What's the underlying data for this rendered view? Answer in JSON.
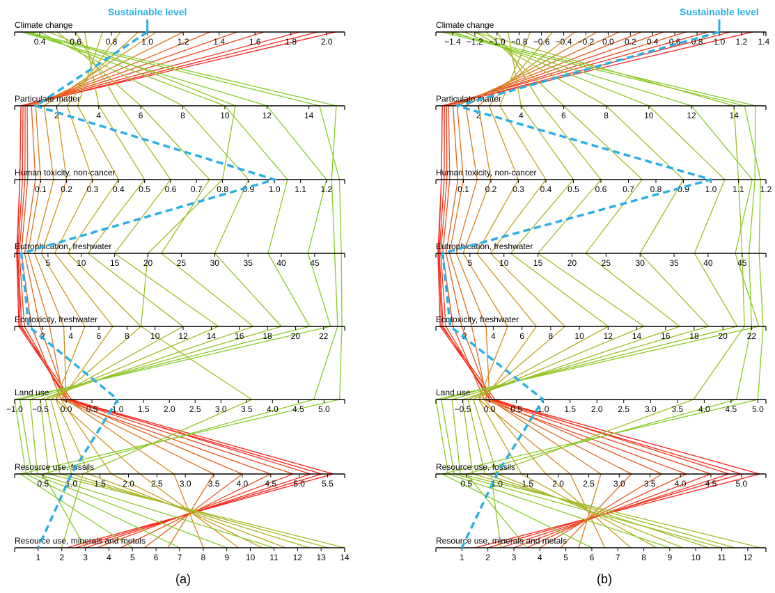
{
  "chart_data": [
    {
      "type": "parallel-coordinates",
      "panel_label": "(a)",
      "reference_line": {
        "label": "Sustainable level",
        "color": "#2ab0e4",
        "value": 1.0
      },
      "color_scale": [
        "#7fd12a",
        "#c8a020",
        "#e8501e",
        "#ff1a1a"
      ],
      "axes": [
        {
          "name": "Climate change",
          "range": [
            0.26,
            2.1
          ],
          "ticks": [
            0.4,
            0.6,
            0.8,
            1.0,
            1.2,
            1.4,
            1.6,
            1.8,
            2.0
          ],
          "tick_labels": [
            "0.4",
            "0.6",
            "0.8",
            "1.0",
            "1.2",
            "1.4",
            "1.6",
            "1.8",
            "2.0"
          ]
        },
        {
          "name": "Particulate matter",
          "range": [
            0.0,
            15.7
          ],
          "ticks": [
            2,
            4,
            6,
            8,
            10,
            12,
            14
          ],
          "tick_labels": [
            "2",
            "4",
            "6",
            "8",
            "10",
            "12",
            "14"
          ]
        },
        {
          "name": "Human toxicity, non-cancer",
          "range": [
            0.0,
            1.27
          ],
          "ticks": [
            0.1,
            0.2,
            0.3,
            0.4,
            0.5,
            0.6,
            0.7,
            0.8,
            0.9,
            1.0,
            1.1,
            1.2
          ],
          "tick_labels": [
            "0.1",
            "0.2",
            "0.3",
            "0.4",
            "0.5",
            "0.6",
            "0.7",
            "0.8",
            "0.9",
            "1.0",
            "1.1",
            "1.2"
          ]
        },
        {
          "name": "Eutrophication, freshwater",
          "range": [
            0.0,
            49.5
          ],
          "ticks": [
            5,
            10,
            15,
            20,
            25,
            30,
            35,
            40,
            45
          ],
          "tick_labels": [
            "5",
            "10",
            "15",
            "20",
            "25",
            "30",
            "35",
            "40",
            "45"
          ]
        },
        {
          "name": "Ecotoxicity, freshwater",
          "range": [
            0.0,
            23.5
          ],
          "ticks": [
            2,
            4,
            6,
            8,
            10,
            12,
            14,
            16,
            18,
            20,
            22
          ],
          "tick_labels": [
            "2",
            "4",
            "6",
            "8",
            "10",
            "12",
            "14",
            "16",
            "18",
            "20",
            "22"
          ]
        },
        {
          "name": "Land use",
          "range": [
            -1.0,
            5.4
          ],
          "ticks": [
            -1.0,
            -0.5,
            0.0,
            0.5,
            1.0,
            1.5,
            2.0,
            2.5,
            3.0,
            3.5,
            4.0,
            4.5,
            5.0
          ],
          "tick_labels": [
            "−1.0",
            "−0.5",
            "0.0",
            "0.5",
            "1.0",
            "1.5",
            "2.0",
            "2.5",
            "3.0",
            "3.5",
            "4.0",
            "4.5",
            "5.0"
          ]
        },
        {
          "name": "Resource use, fossils",
          "range": [
            0.0,
            5.8
          ],
          "ticks": [
            0.5,
            1.0,
            1.5,
            2.0,
            2.5,
            3.0,
            3.5,
            4.0,
            4.5,
            5.0,
            5.5
          ],
          "tick_labels": [
            "0.5",
            "1.0",
            "1.5",
            "2.0",
            "2.5",
            "3.0",
            "3.5",
            "4.0",
            "4.5",
            "5.0",
            "5.5"
          ]
        },
        {
          "name": "Resource use, minerals and metals",
          "range": [
            0.0,
            14.0
          ],
          "ticks": [
            1,
            2,
            3,
            4,
            5,
            6,
            7,
            8,
            9,
            10,
            11,
            12,
            13,
            14
          ],
          "tick_labels": [
            "1",
            "2",
            "3",
            "4",
            "5",
            "6",
            "7",
            "8",
            "9",
            "10",
            "11",
            "12",
            "13",
            "14"
          ]
        }
      ],
      "reference_values": [
        1.0,
        1.0,
        1.0,
        1.0,
        1.0,
        1.0,
        1.0,
        1.0
      ],
      "profiles": [
        [
          2.05,
          0.3,
          0.02,
          0.3,
          0.3,
          0.05,
          5.6,
          2.2
        ],
        [
          1.95,
          0.4,
          0.03,
          0.5,
          0.5,
          0.0,
          5.4,
          2.6
        ],
        [
          1.85,
          0.3,
          0.02,
          0.4,
          0.4,
          0.1,
          5.2,
          3.0
        ],
        [
          1.65,
          0.5,
          0.04,
          0.7,
          0.7,
          0.0,
          4.9,
          3.5
        ],
        [
          1.5,
          0.6,
          0.05,
          1.0,
          1.2,
          -0.1,
          4.5,
          4.5
        ],
        [
          1.35,
          0.8,
          0.08,
          1.5,
          1.8,
          0.0,
          4.0,
          5.5
        ],
        [
          1.2,
          1.0,
          0.1,
          2.0,
          2.5,
          -0.05,
          3.5,
          6.5
        ],
        [
          1.05,
          1.4,
          0.15,
          3.0,
          3.5,
          0.0,
          2.8,
          8.0
        ],
        [
          0.95,
          2.0,
          0.2,
          4.0,
          5.0,
          -0.2,
          2.2,
          9.5
        ],
        [
          0.85,
          2.5,
          0.3,
          6.0,
          7.0,
          -0.1,
          1.7,
          10.5
        ],
        [
          0.75,
          3.0,
          0.4,
          8.0,
          9.0,
          -0.2,
          1.3,
          11.5
        ],
        [
          0.65,
          4.0,
          0.5,
          11.0,
          12.0,
          -0.3,
          1.0,
          12.5
        ],
        [
          0.6,
          5.0,
          0.6,
          15.0,
          14.5,
          -0.4,
          0.8,
          13.3
        ],
        [
          0.5,
          6.0,
          0.75,
          22.0,
          17.0,
          -0.5,
          0.6,
          14.0
        ],
        [
          0.4,
          8.0,
          0.9,
          30.0,
          19.0,
          -0.7,
          0.4,
          11.0
        ],
        [
          0.35,
          10.0,
          1.05,
          38.0,
          21.0,
          -0.9,
          0.3,
          9.0
        ],
        [
          0.3,
          12.0,
          1.2,
          44.0,
          22.5,
          -1.0,
          0.2,
          7.0
        ],
        [
          0.3,
          14.5,
          1.25,
          49.0,
          23.3,
          5.3,
          0.1,
          5.0
        ],
        [
          0.32,
          15.3,
          1.22,
          48.0,
          23.0,
          4.8,
          0.5,
          3.0
        ],
        [
          0.45,
          10.5,
          0.8,
          20.0,
          9.0,
          3.6,
          1.2,
          2.0
        ]
      ]
    },
    {
      "type": "parallel-coordinates",
      "panel_label": "(b)",
      "reference_line": {
        "label": "Sustainable level",
        "color": "#2ab0e4",
        "value": 1.0
      },
      "color_scale": [
        "#7fd12a",
        "#c8a020",
        "#e8501e",
        "#ff1a1a"
      ],
      "axes": [
        {
          "name": "Climate change",
          "range": [
            -1.55,
            1.42
          ],
          "ticks": [
            -1.4,
            -1.2,
            -1.0,
            -0.8,
            -0.6,
            -0.4,
            -0.2,
            0.0,
            0.2,
            0.4,
            0.6,
            0.8,
            1.0,
            1.2,
            1.4
          ],
          "tick_labels": [
            "−1.4",
            "−1.2",
            "−1.0",
            "−0.8",
            "−0.6",
            "−0.4",
            "−0.2",
            "0.0",
            "0.2",
            "0.4",
            "0.6",
            "0.8",
            "1.0",
            "1.2",
            "1.4"
          ]
        },
        {
          "name": "Particulate matter",
          "range": [
            0.0,
            15.5
          ],
          "ticks": [
            2,
            4,
            6,
            8,
            10,
            12,
            14
          ],
          "tick_labels": [
            "2",
            "4",
            "6",
            "8",
            "10",
            "12",
            "14"
          ]
        },
        {
          "name": "Human toxicity, non-cancer",
          "range": [
            0.0,
            1.2
          ],
          "ticks": [
            0.1,
            0.2,
            0.3,
            0.4,
            0.5,
            0.6,
            0.7,
            0.8,
            0.9,
            1.0,
            1.1,
            1.2
          ],
          "tick_labels": [
            "0.1",
            "0.2",
            "0.3",
            "0.4",
            "0.5",
            "0.6",
            "0.7",
            "0.8",
            "0.9",
            "1.0",
            "1.1",
            "1.2"
          ]
        },
        {
          "name": "Eutrophication, freshwater",
          "range": [
            0.0,
            48.5
          ],
          "ticks": [
            5,
            10,
            15,
            20,
            25,
            30,
            35,
            40,
            45
          ],
          "tick_labels": [
            "5",
            "10",
            "15",
            "20",
            "25",
            "30",
            "35",
            "40",
            "45"
          ]
        },
        {
          "name": "Ecotoxicity, freshwater",
          "range": [
            0.0,
            23.0
          ],
          "ticks": [
            2,
            4,
            6,
            8,
            10,
            12,
            14,
            16,
            18,
            20,
            22
          ],
          "tick_labels": [
            "2",
            "4",
            "6",
            "8",
            "10",
            "12",
            "14",
            "16",
            "18",
            "20",
            "22"
          ]
        },
        {
          "name": "Land use",
          "range": [
            -1.0,
            5.15
          ],
          "ticks": [
            -0.5,
            0.0,
            0.5,
            1.0,
            1.5,
            2.0,
            2.5,
            3.0,
            3.5,
            4.0,
            4.5,
            5.0
          ],
          "tick_labels": [
            "−0.5",
            "0.0",
            "0.5",
            "1.0",
            "1.5",
            "2.0",
            "2.5",
            "3.0",
            "3.5",
            "4.0",
            "4.5",
            "5.0"
          ]
        },
        {
          "name": "Resource use, fossils",
          "range": [
            0.0,
            5.4
          ],
          "ticks": [
            0.5,
            1.0,
            1.5,
            2.0,
            2.5,
            3.0,
            3.5,
            4.0,
            4.5,
            5.0
          ],
          "tick_labels": [
            "0.5",
            "1.0",
            "1.5",
            "2.0",
            "2.5",
            "3.0",
            "3.5",
            "4.0",
            "4.5",
            "5.0"
          ]
        },
        {
          "name": "Resource use, minerals and metals",
          "range": [
            0.0,
            12.7
          ],
          "ticks": [
            1,
            2,
            3,
            4,
            5,
            6,
            7,
            8,
            9,
            10,
            11,
            12
          ],
          "tick_labels": [
            "1",
            "2",
            "3",
            "4",
            "5",
            "6",
            "7",
            "8",
            "9",
            "10",
            "11",
            "12"
          ]
        }
      ],
      "reference_values": [
        1.0,
        1.0,
        1.0,
        1.0,
        1.0,
        1.0,
        1.0,
        1.0
      ],
      "profiles": [
        [
          1.3,
          0.3,
          0.02,
          0.3,
          0.3,
          0.05,
          5.3,
          1.5
        ],
        [
          1.1,
          0.4,
          0.03,
          0.5,
          0.5,
          0.0,
          5.0,
          2.0
        ],
        [
          0.9,
          0.3,
          0.02,
          0.4,
          0.4,
          0.1,
          4.8,
          2.5
        ],
        [
          0.7,
          0.5,
          0.04,
          0.7,
          0.7,
          0.0,
          4.5,
          3.0
        ],
        [
          0.5,
          0.6,
          0.05,
          1.0,
          1.2,
          -0.1,
          4.1,
          3.5
        ],
        [
          0.3,
          0.8,
          0.08,
          1.5,
          1.8,
          0.0,
          3.7,
          4.0
        ],
        [
          0.1,
          1.0,
          0.1,
          2.0,
          2.5,
          -0.05,
          3.2,
          4.8
        ],
        [
          -0.1,
          1.4,
          0.15,
          3.0,
          3.5,
          0.0,
          2.7,
          5.5
        ],
        [
          -0.3,
          2.0,
          0.2,
          4.0,
          5.0,
          -0.2,
          2.2,
          6.5
        ],
        [
          -0.5,
          2.5,
          0.3,
          6.0,
          7.0,
          -0.1,
          1.8,
          7.5
        ],
        [
          -0.7,
          3.0,
          0.4,
          8.0,
          9.0,
          -0.2,
          1.4,
          8.5
        ],
        [
          -0.9,
          4.0,
          0.5,
          11.0,
          12.0,
          -0.3,
          1.0,
          9.5
        ],
        [
          -1.0,
          5.0,
          0.6,
          15.0,
          14.5,
          -0.4,
          0.8,
          10.5
        ],
        [
          -1.1,
          6.0,
          0.75,
          22.0,
          17.0,
          -0.5,
          0.6,
          11.5
        ],
        [
          -1.2,
          8.0,
          0.9,
          30.0,
          19.0,
          -0.7,
          0.4,
          12.5
        ],
        [
          -1.3,
          10.0,
          1.05,
          38.0,
          21.0,
          -0.9,
          0.3,
          11.0
        ],
        [
          -1.4,
          12.0,
          1.15,
          44.0,
          22.5,
          -1.0,
          0.2,
          9.0
        ],
        [
          -1.5,
          14.5,
          1.18,
          47.5,
          22.8,
          5.0,
          0.1,
          6.0
        ],
        [
          -1.45,
          15.0,
          1.16,
          46.0,
          22.0,
          4.6,
          0.5,
          3.5
        ],
        [
          -1.2,
          14.0,
          1.1,
          45.0,
          21.5,
          3.8,
          0.9,
          2.5
        ]
      ]
    }
  ]
}
